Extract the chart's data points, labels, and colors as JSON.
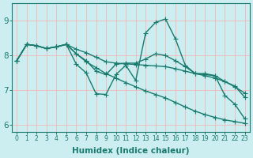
{
  "xlabel": "Humidex (Indice chaleur)",
  "bg_color": "#cceef0",
  "grid_color": "#ffaaaa",
  "line_color": "#1a7a6e",
  "xlim": [
    -0.5,
    23.5
  ],
  "ylim": [
    5.8,
    9.5
  ],
  "yticks": [
    6,
    7,
    8,
    9
  ],
  "xticks": [
    0,
    1,
    2,
    3,
    4,
    5,
    6,
    7,
    8,
    9,
    10,
    11,
    12,
    13,
    14,
    15,
    16,
    17,
    18,
    19,
    20,
    21,
    22,
    23
  ],
  "lines": [
    {
      "x": [
        0,
        1,
        2,
        3,
        4,
        5,
        6,
        7,
        8,
        9,
        10,
        11,
        12,
        13,
        14,
        15,
        16,
        17,
        18,
        19,
        20,
        21,
        22,
        23
      ],
      "y": [
        7.85,
        8.32,
        8.28,
        8.2,
        8.25,
        8.32,
        7.75,
        7.5,
        6.9,
        6.88,
        7.45,
        7.72,
        7.28,
        8.65,
        8.95,
        9.05,
        8.48,
        7.72,
        7.48,
        7.45,
        7.42,
        6.85,
        6.6,
        6.18
      ],
      "marker": "+",
      "markersize": 5,
      "linewidth": 1.0
    },
    {
      "x": [
        0,
        1,
        2,
        3,
        4,
        5,
        6,
        7,
        8,
        9,
        10,
        11,
        12,
        13,
        14,
        15,
        16,
        17,
        18,
        19,
        20,
        21,
        22,
        23
      ],
      "y": [
        7.85,
        8.32,
        8.28,
        8.2,
        8.25,
        8.32,
        8.05,
        7.85,
        7.55,
        7.45,
        7.75,
        7.78,
        7.78,
        7.9,
        8.05,
        8.0,
        7.85,
        7.68,
        7.48,
        7.48,
        7.42,
        7.25,
        7.12,
        6.8
      ],
      "marker": "+",
      "markersize": 5,
      "linewidth": 1.0
    },
    {
      "x": [
        0,
        1,
        2,
        3,
        4,
        5,
        6,
        7,
        8,
        9,
        10,
        11,
        12,
        13,
        14,
        15,
        16,
        17,
        18,
        19,
        20,
        21,
        22,
        23
      ],
      "y": [
        7.85,
        8.32,
        8.28,
        8.2,
        8.25,
        8.32,
        8.18,
        8.08,
        7.95,
        7.82,
        7.78,
        7.76,
        7.74,
        7.72,
        7.7,
        7.68,
        7.62,
        7.55,
        7.48,
        7.42,
        7.35,
        7.25,
        7.1,
        6.92
      ],
      "marker": "+",
      "markersize": 5,
      "linewidth": 1.0
    },
    {
      "x": [
        0,
        1,
        2,
        3,
        4,
        5,
        6,
        7,
        8,
        9,
        10,
        11,
        12,
        13,
        14,
        15,
        16,
        17,
        18,
        19,
        20,
        21,
        22,
        23
      ],
      "y": [
        7.85,
        8.32,
        8.28,
        8.2,
        8.25,
        8.32,
        8.05,
        7.82,
        7.65,
        7.48,
        7.35,
        7.22,
        7.1,
        6.98,
        6.88,
        6.78,
        6.65,
        6.52,
        6.4,
        6.3,
        6.22,
        6.15,
        6.1,
        6.05
      ],
      "marker": "+",
      "markersize": 5,
      "linewidth": 1.0
    }
  ]
}
